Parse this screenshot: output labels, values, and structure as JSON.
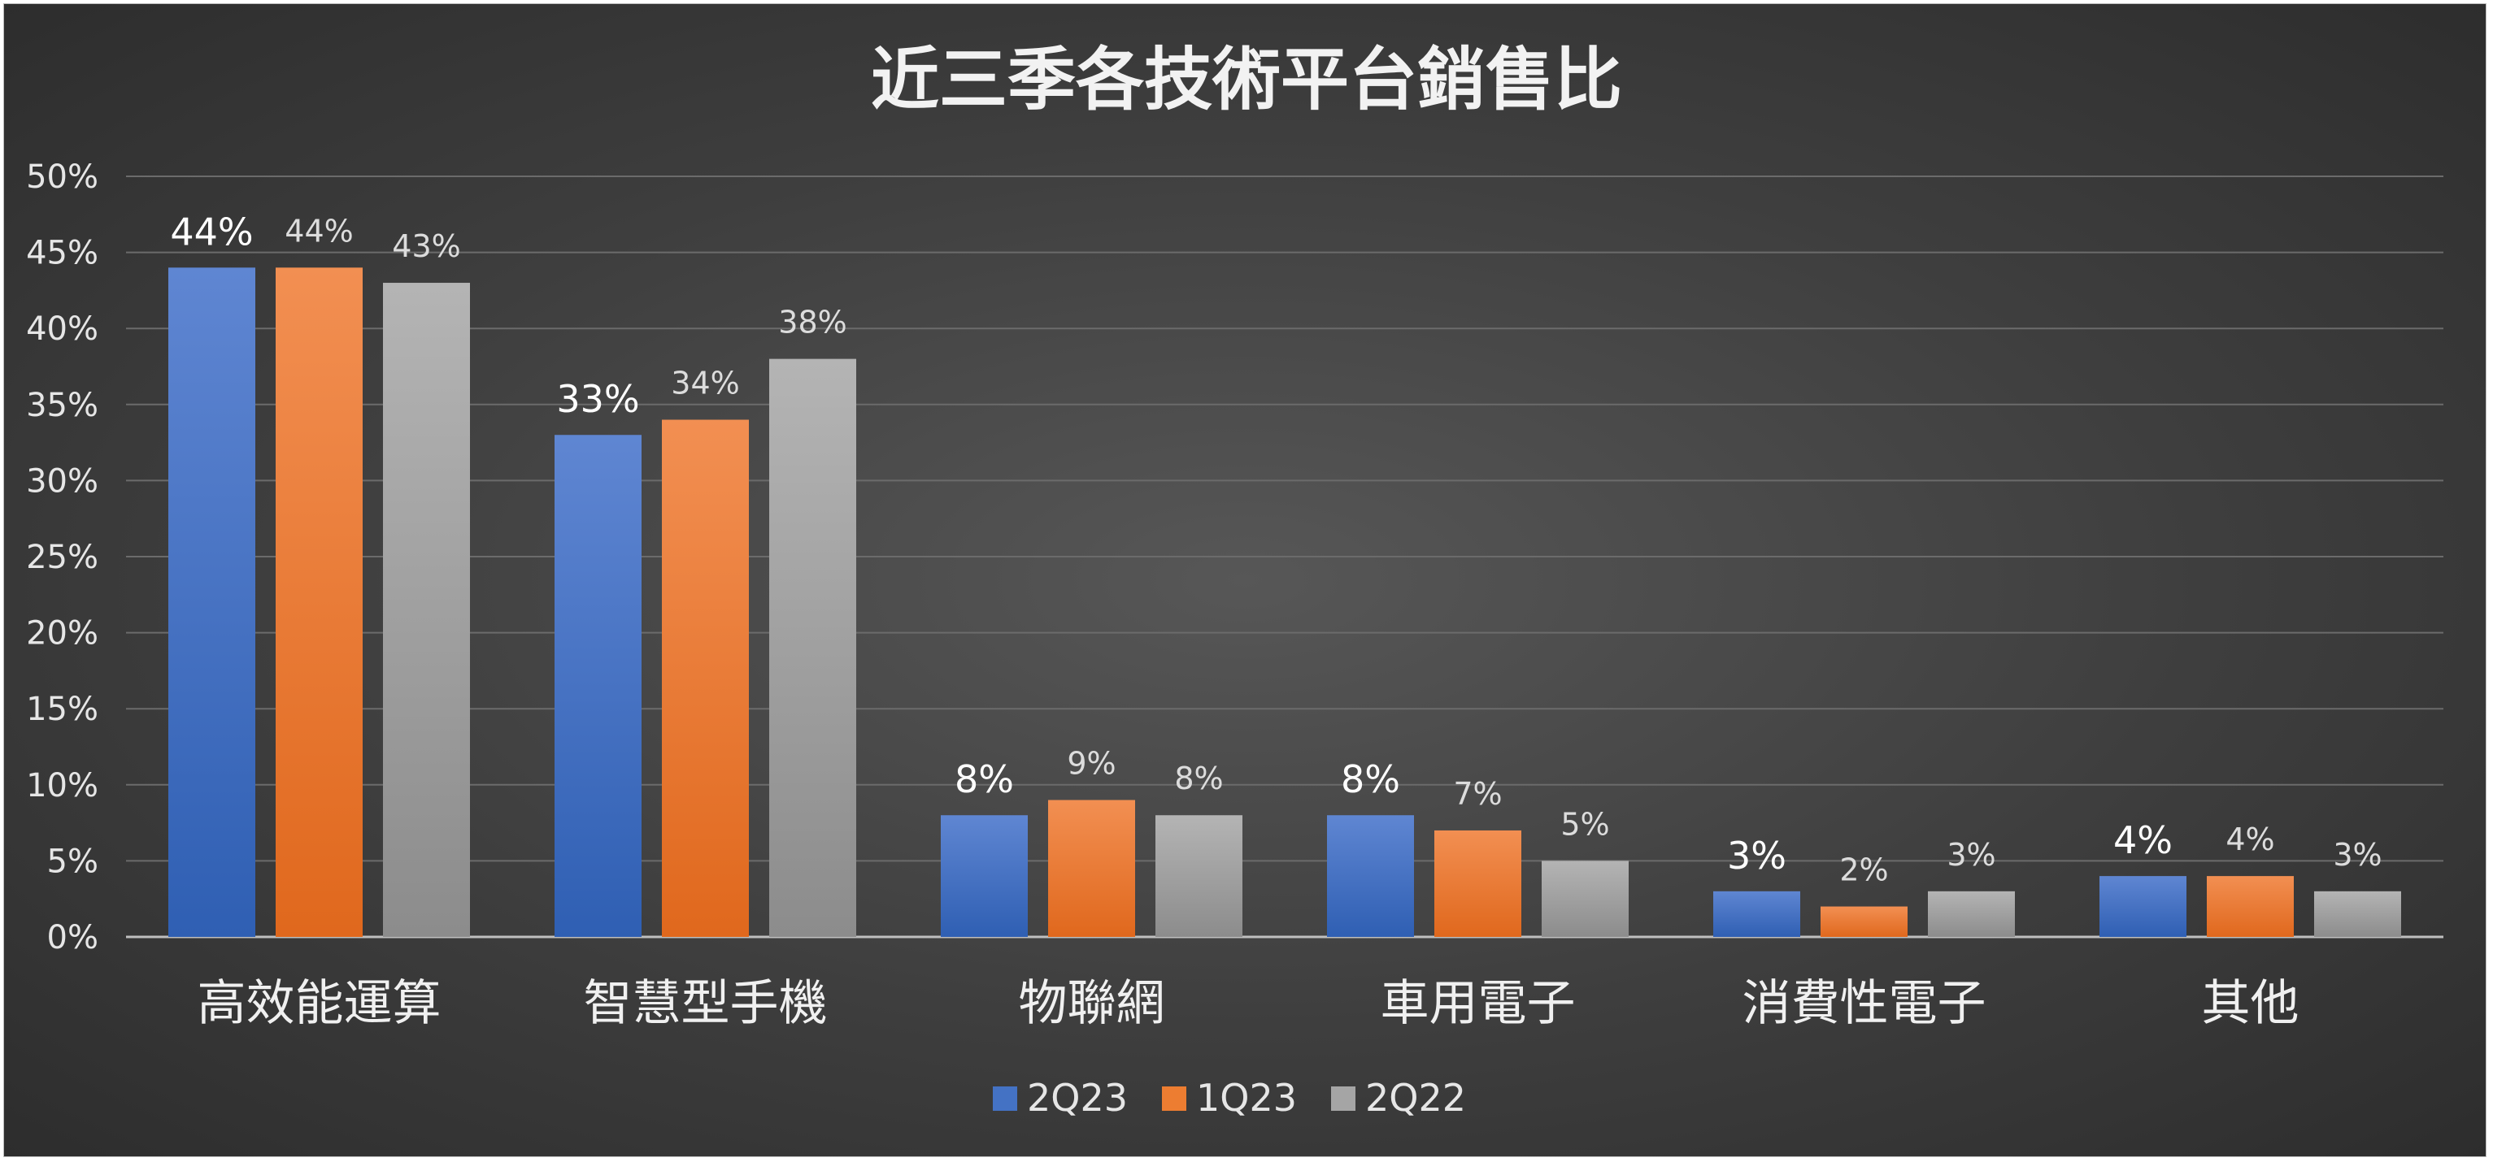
{
  "chart_data": {
    "type": "bar",
    "title": "近三季各技術平台銷售比",
    "xlabel": "",
    "ylabel": "",
    "categories": [
      "高效能運算",
      "智慧型手機",
      "物聯網",
      "車用電子",
      "消費性電子",
      "其他"
    ],
    "series": [
      {
        "name": "2Q23",
        "values": [
          44,
          33,
          8,
          8,
          3,
          4
        ],
        "labels": [
          "44%",
          "33%",
          "8%",
          "8%",
          "3%",
          "4%"
        ]
      },
      {
        "name": "1Q23",
        "values": [
          44,
          34,
          9,
          7,
          2,
          4
        ],
        "labels": [
          "44%",
          "34%",
          "9%",
          "7%",
          "2%",
          "4%"
        ]
      },
      {
        "name": "2Q22",
        "values": [
          43,
          38,
          8,
          5,
          3,
          3
        ],
        "labels": [
          "43%",
          "38%",
          "8%",
          "5%",
          "3%",
          "3%"
        ]
      }
    ],
    "ylim": [
      0,
      50
    ],
    "yticks": [
      "0%",
      "5%",
      "10%",
      "15%",
      "20%",
      "25%",
      "30%",
      "35%",
      "40%",
      "45%",
      "50%"
    ],
    "grid": true,
    "legend_position": "bottom-center",
    "colors": {
      "2Q23": "#4472c4",
      "1Q23": "#ed7d31",
      "2Q22": "#a5a5a5"
    }
  }
}
